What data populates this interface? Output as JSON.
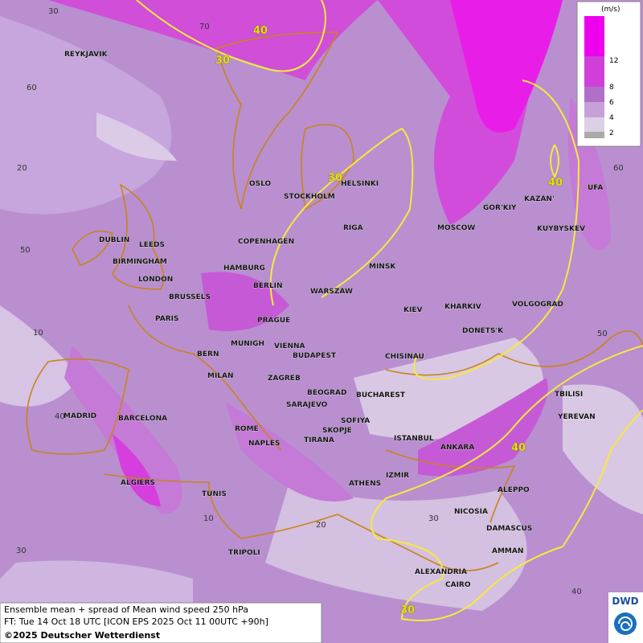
{
  "map": {
    "legend": {
      "unit": "(m/s)",
      "levels": [
        2,
        4,
        6,
        8,
        12
      ]
    },
    "cities": [
      "REYKJAVIK",
      "OSLO",
      "STOCKHOLM",
      "HELSINKI",
      "DUBLIN",
      "LEEDS",
      "BIRMINGHAM",
      "LONDON",
      "COPENHAGEN",
      "HAMBURG",
      "RIGA",
      "MINSK",
      "MOSCOW",
      "GOR'KIY",
      "KAZAN'",
      "UFA",
      "KUYBYSKEV",
      "BERLIN",
      "WARSZAW",
      "BRUSSELS",
      "PARIS",
      "PRAGUE",
      "KIEV",
      "KHARKIV",
      "VOLGOGRAD",
      "DONETS'K",
      "BERN",
      "MUNIGH",
      "VIENNA",
      "BUDAPEST",
      "CHISINAU",
      "MILAN",
      "ZAGREB",
      "BEOGRAD",
      "BUCHAREST",
      "TBILISI",
      "YEREVAN",
      "MADRID",
      "BARCELONA",
      "SARAJEVO",
      "SOFIYA",
      "ROME",
      "SKOPJE",
      "TIRANA",
      "ISTANBUL",
      "ANKARA",
      "NAPLES",
      "ALGIERS",
      "ATHENS",
      "IZMIR",
      "ALEPPO",
      "TUNIS",
      "NICOSIA",
      "DAMASCUS",
      "TRIPOLI",
      "AMMAN",
      "ALEXANDRIA",
      "CAIRO"
    ],
    "grid_labels": [
      30,
      70,
      60,
      20,
      60,
      50,
      10,
      50,
      40,
      10,
      20,
      30,
      40,
      30
    ],
    "contour_labels": [
      40,
      30,
      30,
      40,
      40,
      30
    ]
  },
  "footer": {
    "lines": [
      "Ensemble mean + spread of Mean wind speed 250 hPa",
      "FT: Tue 14 Oct 18 UTC [ICON EPS 2025 Oct 11 00UTC +90h]",
      "©2025 Deutscher Wetterdienst"
    ],
    "logo": "DWD"
  }
}
